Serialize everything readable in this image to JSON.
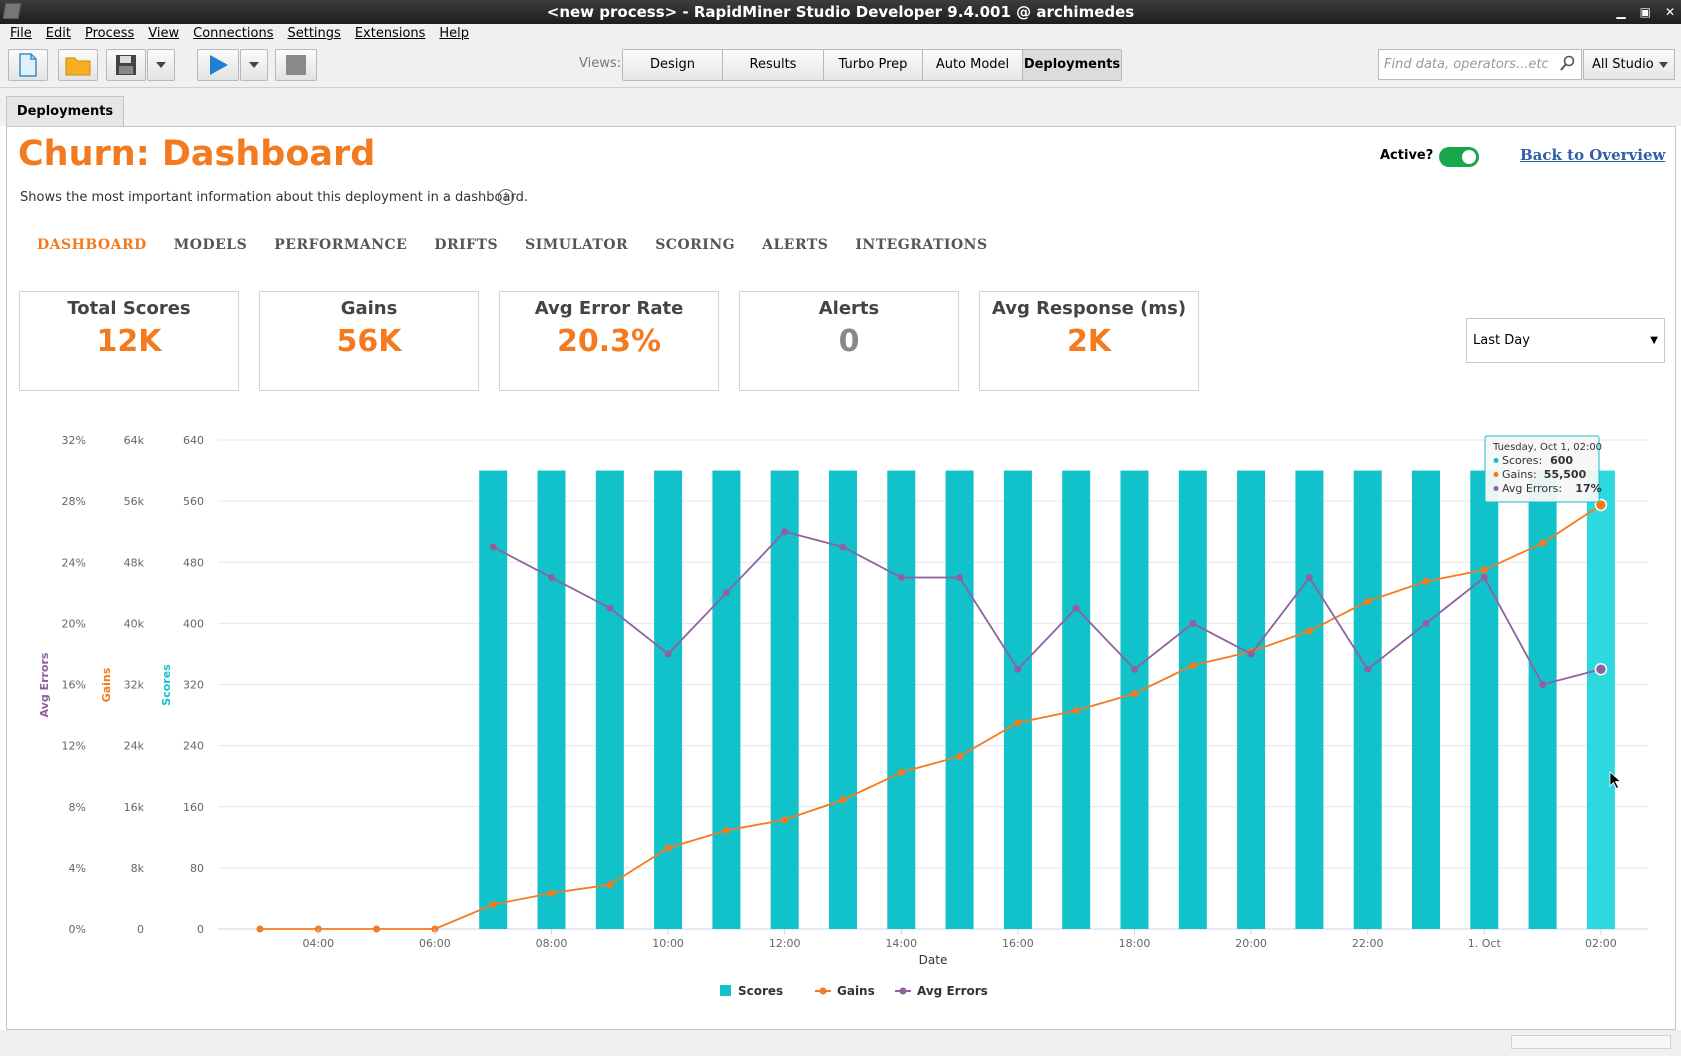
{
  "window": {
    "title": "<new process> - RapidMiner Studio Developer 9.4.001 @ archimedes",
    "controls": [
      "▁",
      "▣",
      "✕"
    ]
  },
  "menu": [
    "File",
    "Edit",
    "Process",
    "View",
    "Connections",
    "Settings",
    "Extensions",
    "Help"
  ],
  "toolbar": {
    "views_label": "Views:",
    "views": [
      "Design",
      "Results",
      "Turbo Prep",
      "Auto Model",
      "Deployments"
    ],
    "active_view": "Deployments",
    "search_placeholder": "Find data, operators...etc",
    "scope": "All Studio"
  },
  "doc_tab": "Deployments",
  "page": {
    "title": "Churn: Dashboard",
    "subtitle": "Shows the most important information about this deployment in a dashboard.",
    "active_label": "Active?",
    "active": true,
    "back_link": "Back to Overview"
  },
  "nav_tabs": [
    "DASHBOARD",
    "MODELS",
    "PERFORMANCE",
    "DRIFTS",
    "SIMULATOR",
    "SCORING",
    "ALERTS",
    "INTEGRATIONS"
  ],
  "kpis": [
    {
      "label": "Total Scores",
      "value": "12K"
    },
    {
      "label": "Gains",
      "value": "56K"
    },
    {
      "label": "Avg Error Rate",
      "value": "20.3%"
    },
    {
      "label": "Alerts",
      "value": "0"
    },
    {
      "label": "Avg Response (ms)",
      "value": "2K"
    }
  ],
  "time_range": "Last Day",
  "colors": {
    "scores": "#12c2cb",
    "gains": "#f47a20",
    "errors": "#9060a0",
    "accent": "#f47a20"
  },
  "chart_data": {
    "type": "bar",
    "xlabel": "Date",
    "x_ticks": [
      "04:00",
      "06:00",
      "08:00",
      "10:00",
      "12:00",
      "14:00",
      "16:00",
      "18:00",
      "20:00",
      "22:00",
      "1. Oct",
      "02:00"
    ],
    "hours": [
      "03:00",
      "04:00",
      "05:00",
      "06:00",
      "07:00",
      "08:00",
      "09:00",
      "10:00",
      "11:00",
      "12:00",
      "13:00",
      "14:00",
      "15:00",
      "16:00",
      "17:00",
      "18:00",
      "19:00",
      "20:00",
      "21:00",
      "22:00",
      "23:00",
      "00:00",
      "01:00",
      "02:00"
    ],
    "axes": [
      {
        "name": "Avg Errors",
        "ticks": [
          "0%",
          "4%",
          "8%",
          "12%",
          "16%",
          "20%",
          "24%",
          "28%",
          "32%"
        ],
        "ylim": [
          0,
          32
        ],
        "unit": "%"
      },
      {
        "name": "Gains",
        "ticks": [
          "0",
          "8k",
          "16k",
          "24k",
          "32k",
          "40k",
          "48k",
          "56k",
          "64k"
        ],
        "ylim": [
          0,
          64000
        ]
      },
      {
        "name": "Scores",
        "ticks": [
          "0",
          "80",
          "160",
          "240",
          "320",
          "400",
          "480",
          "560",
          "640"
        ],
        "ylim": [
          0,
          640
        ]
      }
    ],
    "series": [
      {
        "name": "Scores",
        "type": "bar",
        "values": [
          0,
          0,
          0,
          0,
          600,
          600,
          600,
          600,
          600,
          600,
          600,
          600,
          600,
          600,
          600,
          600,
          600,
          600,
          600,
          600,
          600,
          600,
          600,
          600
        ]
      },
      {
        "name": "Gains",
        "type": "line",
        "values": [
          0,
          0,
          0,
          0,
          3200,
          4700,
          5800,
          10600,
          12900,
          14300,
          16900,
          20500,
          22600,
          27000,
          28600,
          30800,
          34500,
          36300,
          39000,
          42900,
          45500,
          47000,
          50500,
          55500
        ]
      },
      {
        "name": "Avg Errors",
        "type": "line",
        "values": [
          null,
          null,
          null,
          null,
          25,
          23,
          21,
          18,
          22,
          26,
          25,
          23,
          23,
          17,
          21,
          17,
          20,
          18,
          23,
          17,
          20,
          23,
          16,
          17
        ]
      }
    ],
    "legend": [
      "Scores",
      "Gains",
      "Avg Errors"
    ],
    "legend_position": "bottom-center",
    "tooltip": {
      "title": "Tuesday, Oct 1, 02:00",
      "scores_label": "Scores:",
      "scores": "600",
      "gains_label": "Gains:",
      "gains": "55,500",
      "errors_label": "Avg Errors:",
      "errors": "17%"
    },
    "highlighted_bar": "02:00",
    "highlight_color": "#2dd8df",
    "grid": true
  }
}
